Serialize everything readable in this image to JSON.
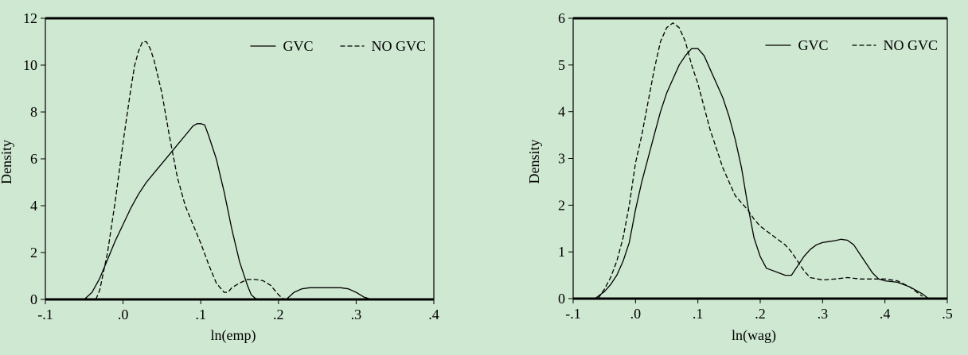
{
  "chart_data": [
    {
      "type": "line",
      "xlabel": "ln(emp)",
      "ylabel": "Density",
      "xlim": [
        -0.1,
        0.4
      ],
      "ylim": [
        0,
        12
      ],
      "xticks": [
        -0.1,
        0.0,
        0.1,
        0.2,
        0.3,
        0.4
      ],
      "xtick_labels": [
        "-.1",
        ".0",
        ".1",
        ".2",
        ".3",
        ".4"
      ],
      "yticks": [
        0,
        2,
        4,
        6,
        8,
        10,
        12
      ],
      "ytick_labels": [
        "0",
        "2",
        "4",
        "6",
        "8",
        "10",
        "12"
      ],
      "legend_position": "top-right",
      "series": [
        {
          "name": "GVC",
          "style": "solid",
          "x": [
            -0.05,
            -0.04,
            -0.03,
            -0.02,
            -0.01,
            0.0,
            0.01,
            0.02,
            0.03,
            0.04,
            0.05,
            0.06,
            0.07,
            0.08,
            0.09,
            0.095,
            0.1,
            0.105,
            0.11,
            0.12,
            0.13,
            0.14,
            0.15,
            0.16,
            0.165,
            0.17,
            0.175,
            0.18,
            0.19,
            0.2,
            0.21,
            0.22,
            0.23,
            0.24,
            0.25,
            0.26,
            0.27,
            0.28,
            0.29,
            0.3,
            0.31,
            0.32
          ],
          "y": [
            0,
            0.3,
            0.9,
            1.7,
            2.5,
            3.2,
            3.9,
            4.5,
            5.0,
            5.4,
            5.8,
            6.2,
            6.6,
            7.0,
            7.4,
            7.5,
            7.5,
            7.45,
            7.0,
            6.0,
            4.6,
            3.0,
            1.6,
            0.6,
            0.2,
            0.05,
            0,
            0,
            0,
            0,
            0,
            0.3,
            0.45,
            0.5,
            0.5,
            0.5,
            0.5,
            0.5,
            0.45,
            0.3,
            0.1,
            0
          ]
        },
        {
          "name": "NO GVC",
          "style": "dashed",
          "x": [
            -0.035,
            -0.03,
            -0.02,
            -0.01,
            0.0,
            0.01,
            0.015,
            0.02,
            0.025,
            0.03,
            0.035,
            0.04,
            0.05,
            0.06,
            0.07,
            0.08,
            0.09,
            0.1,
            0.11,
            0.12,
            0.13,
            0.135,
            0.14,
            0.15,
            0.16,
            0.17,
            0.18,
            0.19,
            0.2,
            0.205,
            0.21
          ],
          "y": [
            0,
            0.4,
            2.0,
            4.2,
            6.7,
            9.0,
            10.0,
            10.6,
            11.0,
            11.0,
            10.7,
            10.2,
            8.8,
            6.9,
            5.2,
            4.0,
            3.2,
            2.4,
            1.5,
            0.7,
            0.3,
            0.3,
            0.5,
            0.7,
            0.85,
            0.85,
            0.8,
            0.6,
            0.2,
            0.05,
            0
          ]
        }
      ]
    },
    {
      "type": "line",
      "xlabel": "ln(wag)",
      "ylabel": "Density",
      "xlim": [
        -0.1,
        0.5
      ],
      "ylim": [
        0,
        6
      ],
      "xticks": [
        -0.1,
        0.0,
        0.1,
        0.2,
        0.3,
        0.4,
        0.5
      ],
      "xtick_labels": [
        "-.1",
        ".0",
        ".1",
        ".2",
        ".3",
        ".4",
        ".5"
      ],
      "yticks": [
        0,
        1,
        2,
        3,
        4,
        5,
        6
      ],
      "ytick_labels": [
        "0",
        "1",
        "2",
        "3",
        "4",
        "5",
        "6"
      ],
      "legend_position": "top-right",
      "series": [
        {
          "name": "GVC",
          "style": "solid",
          "x": [
            -0.065,
            -0.05,
            -0.04,
            -0.03,
            -0.02,
            -0.01,
            0.0,
            0.01,
            0.02,
            0.03,
            0.04,
            0.05,
            0.06,
            0.07,
            0.08,
            0.09,
            0.1,
            0.11,
            0.12,
            0.13,
            0.14,
            0.15,
            0.16,
            0.17,
            0.18,
            0.19,
            0.2,
            0.21,
            0.22,
            0.23,
            0.24,
            0.25,
            0.26,
            0.27,
            0.28,
            0.29,
            0.3,
            0.31,
            0.32,
            0.33,
            0.34,
            0.35,
            0.36,
            0.37,
            0.38,
            0.39,
            0.4,
            0.42,
            0.44,
            0.46,
            0.47
          ],
          "y": [
            0,
            0.15,
            0.3,
            0.5,
            0.8,
            1.2,
            1.9,
            2.5,
            3.0,
            3.5,
            4.0,
            4.4,
            4.7,
            5.0,
            5.2,
            5.35,
            5.35,
            5.2,
            4.9,
            4.6,
            4.3,
            3.9,
            3.4,
            2.8,
            2.0,
            1.3,
            0.9,
            0.65,
            0.6,
            0.55,
            0.5,
            0.5,
            0.7,
            0.9,
            1.05,
            1.15,
            1.2,
            1.22,
            1.24,
            1.27,
            1.25,
            1.15,
            0.95,
            0.75,
            0.55,
            0.42,
            0.38,
            0.35,
            0.25,
            0.1,
            0
          ]
        },
        {
          "name": "NO GVC",
          "style": "dashed",
          "x": [
            -0.06,
            -0.05,
            -0.04,
            -0.03,
            -0.02,
            -0.01,
            0.0,
            0.01,
            0.02,
            0.03,
            0.04,
            0.05,
            0.06,
            0.07,
            0.08,
            0.09,
            0.1,
            0.11,
            0.12,
            0.13,
            0.14,
            0.15,
            0.16,
            0.17,
            0.18,
            0.19,
            0.2,
            0.21,
            0.22,
            0.23,
            0.24,
            0.25,
            0.26,
            0.27,
            0.28,
            0.3,
            0.32,
            0.34,
            0.36,
            0.38,
            0.4,
            0.42,
            0.44,
            0.46
          ],
          "y": [
            0,
            0.2,
            0.45,
            0.8,
            1.3,
            2.0,
            2.9,
            3.5,
            4.2,
            4.9,
            5.5,
            5.8,
            5.9,
            5.8,
            5.5,
            5.0,
            4.6,
            4.1,
            3.6,
            3.2,
            2.8,
            2.5,
            2.2,
            2.05,
            1.9,
            1.7,
            1.55,
            1.45,
            1.35,
            1.25,
            1.15,
            1.0,
            0.8,
            0.6,
            0.45,
            0.4,
            0.42,
            0.45,
            0.42,
            0.42,
            0.42,
            0.38,
            0.25,
            0.05
          ]
        }
      ]
    }
  ]
}
